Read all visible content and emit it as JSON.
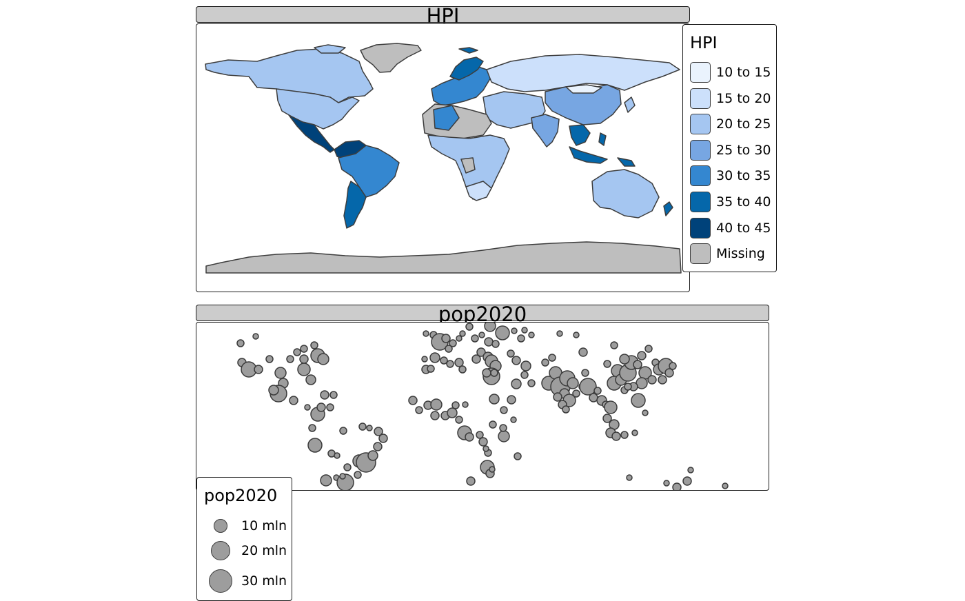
{
  "panels": {
    "hpi": {
      "title": "HPI",
      "legend": {
        "title": "HPI",
        "items": [
          {
            "label": "10 to 15",
            "color": "#eaf3fd"
          },
          {
            "label": "15 to 20",
            "color": "#cce0fb"
          },
          {
            "label": "20 to 25",
            "color": "#a5c6f1"
          },
          {
            "label": "25 to 30",
            "color": "#77a6e2"
          },
          {
            "label": "30 to 35",
            "color": "#3487d0"
          },
          {
            "label": "35 to 40",
            "color": "#0567aa"
          },
          {
            "label": "40 to 45",
            "color": "#00427a"
          },
          {
            "label": "Missing",
            "color": "#bebebe"
          }
        ]
      }
    },
    "pop": {
      "title": "pop2020",
      "legend": {
        "title": "pop2020",
        "items": [
          {
            "label": "10 mln",
            "value": 10
          },
          {
            "label": "20 mln",
            "value": 20
          },
          {
            "label": "30 mln",
            "value": 30
          }
        ]
      }
    }
  },
  "colors": {
    "border": "#3d3d3d",
    "bubble_fill": "#9d9d9d",
    "strip_fill": "#cccccc"
  }
}
